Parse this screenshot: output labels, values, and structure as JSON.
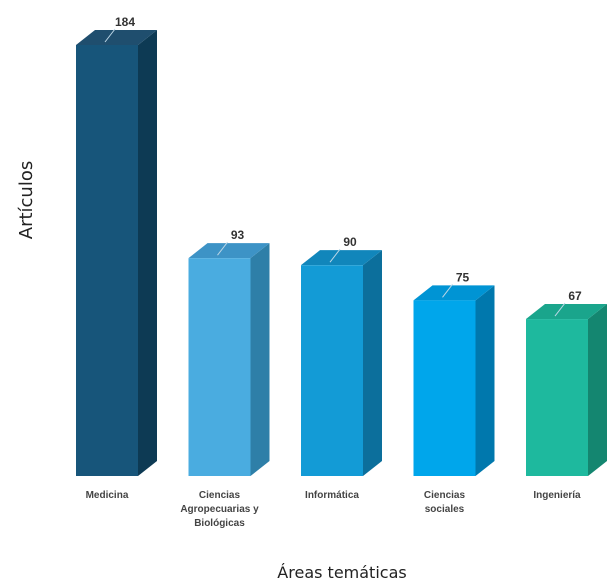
{
  "chart_data": {
    "type": "bar",
    "title": "",
    "xlabel": "Áreas temáticas",
    "ylabel": "Artículos",
    "categories": [
      [
        "Medicina"
      ],
      [
        "Ciencias",
        "Agropecuarias y",
        "Biológicas"
      ],
      [
        "Informática"
      ],
      [
        "Ciencias",
        "sociales"
      ],
      [
        "Ingeniería"
      ]
    ],
    "values": [
      184,
      93,
      90,
      75,
      67
    ],
    "value_labels": [
      "184",
      "93",
      "90",
      "75",
      "67"
    ],
    "ylim": [
      0,
      184
    ],
    "grid": false,
    "legend": "none",
    "colors": [
      {
        "front": "#17557a",
        "side": "#0d3a54",
        "top": "#1f4e6e"
      },
      {
        "front": "#4aace0",
        "side": "#2e7fa8",
        "top": "#3d93c6"
      },
      {
        "front": "#139bd6",
        "side": "#0c6f9c",
        "top": "#1186bb"
      },
      {
        "front": "#00a6eb",
        "side": "#0078ad",
        "top": "#0094d4"
      },
      {
        "front": "#1eb99e",
        "side": "#148670",
        "top": "#1aa58c"
      }
    ]
  }
}
